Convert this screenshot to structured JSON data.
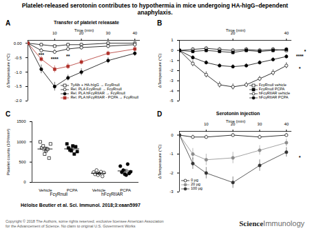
{
  "title": "Platelet-released serotonin contributes to hypothermia in mice undergoing HA-hIgG–dependent anaphylaxis.",
  "citation": "Héloïse Beutier et al. Sci. Immunol. 2018;3:eaan5997",
  "copyright": [
    "Copyright © 2018 The Authors, some rights reserved; exclusive licensee American Association",
    "for the Advancement of Science. No claim to original U.S. Government Works"
  ],
  "logo": [
    "Science",
    "Immunology"
  ],
  "chart_data": [
    {
      "type": "line",
      "panel": "A",
      "title": "Transfer of platelet releasate",
      "x_label": "Time (min)",
      "y_label": "ΔTemperature (°C)",
      "x": [
        0,
        5,
        10,
        15,
        20,
        30,
        40
      ],
      "xlim": [
        0,
        42
      ],
      "xticks": [
        10,
        20,
        30,
        40
      ],
      "ylim": [
        -2.0,
        0.1
      ],
      "yticks": [
        {
          "value": 0,
          "label": "0.00"
        },
        -0.5,
        {
          "value": -1,
          "label": "-1.0"
        },
        -1.5,
        {
          "value": -2,
          "label": "-2.0"
        }
      ],
      "legend": "bottom-right",
      "series": [
        {
          "name": "TyAlb + HA-hIgG → FcγRnull",
          "marker": "square",
          "color": "#ffffff",
          "values": [
            0,
            -0.05,
            -0.1,
            -0.05,
            -0.05,
            0,
            0
          ],
          "errors": [
            0,
            0.05,
            0.05,
            0.05,
            0.05,
            0.05,
            0.05
          ]
        },
        {
          "name": "Rel. PLA FcγRnull → FcγRnull",
          "marker": "circle",
          "color": "#ffffff",
          "values": [
            0,
            -0.25,
            -0.3,
            -0.2,
            -0.15,
            -0.1,
            -0.05
          ],
          "errors": [
            0,
            0.08,
            0.08,
            0.08,
            0.08,
            0.08,
            0.08
          ]
        },
        {
          "name": "Rel. PLA hFcγRIIAR → FcγRnull",
          "marker": "circle",
          "color": "#000000",
          "values": [
            0,
            -0.9,
            -1.5,
            -1.2,
            -1.0,
            -0.6,
            -0.35
          ],
          "errors": [
            0,
            0.15,
            0.15,
            0.1,
            0.12,
            0.1,
            0.1
          ]
        },
        {
          "name": "Rel. PLA hFcγRIIAR - PCPA → FcγRnull",
          "marker": "square",
          "color": "#b0302a",
          "values": [
            0,
            -0.55,
            -0.9,
            -0.8,
            -0.65,
            -0.35,
            -0.2
          ],
          "errors": [
            0,
            0.1,
            0.12,
            0.1,
            0.1,
            0.08,
            0.08
          ]
        }
      ],
      "annotations": [
        {
          "text": "***",
          "x": 5,
          "y": -0.4
        },
        {
          "text": "****",
          "x": 10,
          "y": -0.55
        },
        {
          "text": "**",
          "x": 15,
          "y": -0.45
        }
      ]
    },
    {
      "type": "line",
      "panel": "B",
      "x_label": "Time (min)",
      "y_label": "ΔTemperature (°C)",
      "x": [
        0,
        5,
        10,
        15,
        20,
        25,
        30,
        35,
        40
      ],
      "xlim": [
        0,
        42
      ],
      "xticks": [
        20,
        40
      ],
      "ylim": [
        -5,
        1
      ],
      "yticks": [
        1,
        0,
        -1,
        -2,
        -3,
        -4,
        -5
      ],
      "legend": "bottom-right",
      "series": [
        {
          "name": "FcγRnull vehicle",
          "marker": "square",
          "color": "#ffffff",
          "values": [
            0,
            0.1,
            0.2,
            0.1,
            0,
            0.1,
            0,
            0.1,
            0
          ],
          "errors": [
            0,
            0.2,
            0.2,
            0.2,
            0.2,
            0.2,
            0.2,
            0.2,
            0.2
          ]
        },
        {
          "name": "FcγRnull PCPA",
          "marker": "square",
          "color": "#000000",
          "values": [
            0,
            -0.1,
            0,
            -0.1,
            -0.2,
            0,
            -0.1,
            0,
            0.1
          ],
          "errors": [
            0,
            0.2,
            0.2,
            0.2,
            0.2,
            0.2,
            0.2,
            0.2,
            0.2
          ]
        },
        {
          "name": "hFcγRIIAR vehicle",
          "marker": "circle",
          "color": "#ffffff",
          "values": [
            0,
            -1.3,
            -2.4,
            -3.4,
            -3.6,
            -3.4,
            -2.8,
            -2.2,
            -1.5
          ],
          "errors": [
            0,
            0.3,
            0.3,
            0.3,
            0.3,
            0.25,
            0.25,
            0.3,
            0.3
          ]
        },
        {
          "name": "hFcγRIIAR PCPA",
          "marker": "circle",
          "color": "#000000",
          "values": [
            0,
            -0.7,
            -1.2,
            -1.5,
            -1.6,
            -1.5,
            -1.2,
            -0.9,
            -0.6
          ],
          "errors": [
            0,
            0.2,
            0.2,
            0.2,
            0.2,
            0.2,
            0.2,
            0.2,
            0.2
          ]
        }
      ],
      "annotations": [
        {
          "text": "****",
          "x": 45,
          "y": -0.6
        },
        {
          "text": "*",
          "x": 47,
          "y": -0.1
        },
        {
          "text": "*",
          "x": 45,
          "y": -1.8
        }
      ]
    },
    {
      "type": "scatter",
      "panel": "C",
      "y_label": "Platelet counts (10³/mm³)",
      "ylim": [
        0,
        1500
      ],
      "yticks": [
        0,
        500,
        1000,
        1500
      ],
      "series": [
        {
          "name": "Vehicle",
          "group": "FcγRnull",
          "marker": "square",
          "color": "#ffffff",
          "values": [
            1000,
            850,
            900,
            700,
            780,
            820,
            600,
            950
          ],
          "mean": 825,
          "error": 45
        },
        {
          "name": "PCPA",
          "group": "FcγRnull",
          "marker": "square",
          "color": "#000000",
          "values": [
            950,
            850,
            800,
            780,
            900,
            700,
            880,
            760
          ],
          "mean": 827.5,
          "error": 30
        },
        {
          "name": "Vehicle",
          "group": "hFcγRIIAR",
          "marker": "circle",
          "color": "#ffffff",
          "values": [
            250,
            200,
            300,
            180,
            220,
            260,
            150,
            240
          ],
          "mean": 225,
          "error": 18
        },
        {
          "name": "PCPA",
          "group": "hFcγRIIAR",
          "marker": "circle",
          "color": "#000000",
          "values": [
            400,
            250,
            300,
            200,
            180,
            450,
            220,
            260
          ],
          "mean": 282.5,
          "error": 35
        }
      ]
    },
    {
      "type": "line",
      "panel": "D",
      "title": "Serotonin injection",
      "x_label": "Time (min)",
      "y_label": "ΔTemperature (°C)",
      "x": [
        0,
        5,
        10,
        20,
        30,
        40
      ],
      "xlim": [
        0,
        42
      ],
      "xticks": [
        10,
        20,
        30,
        40
      ],
      "ylim": [
        -3,
        0.2
      ],
      "yticks": [
        0,
        -1,
        -2,
        -3
      ],
      "legend": "bottom-left",
      "series": [
        {
          "name": "0 µg",
          "marker": "circle",
          "color": "#ffffff",
          "values": [
            0,
            -0.1,
            -0.1,
            0,
            -0.1,
            0
          ],
          "errors": [
            0,
            0.1,
            0.1,
            0.1,
            0.1,
            0.1
          ]
        },
        {
          "name": "20 µg",
          "marker": "circle",
          "color": "#8c8c8c",
          "values": [
            0,
            -1.0,
            -1.3,
            -1.2,
            -0.8,
            -0.4
          ],
          "errors": [
            0,
            0.3,
            0.3,
            0.3,
            0.25,
            0.2
          ]
        },
        {
          "name": "100 µg",
          "marker": "circle",
          "color": "#333333",
          "values": [
            0,
            -1.5,
            -2.0,
            -2.5,
            -1.6,
            -0.9
          ],
          "errors": [
            0,
            0.3,
            0.3,
            0.3,
            0.3,
            0.25
          ]
        }
      ],
      "annotations": [
        {
          "text": "*",
          "x": 45,
          "y": -1.2
        }
      ]
    }
  ]
}
